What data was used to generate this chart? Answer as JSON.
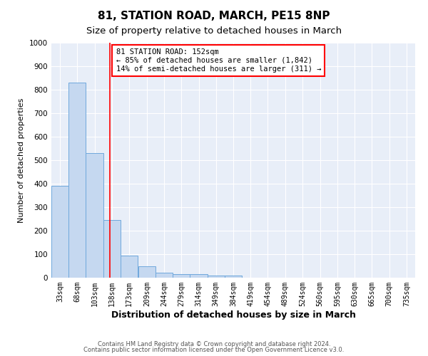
{
  "title": "81, STATION ROAD, MARCH, PE15 8NP",
  "subtitle": "Size of property relative to detached houses in March",
  "xlabel": "Distribution of detached houses by size in March",
  "ylabel": "Number of detached properties",
  "bin_edges": [
    33,
    68,
    103,
    138,
    173,
    209,
    244,
    279,
    314,
    349,
    384,
    419,
    454,
    489,
    524,
    560,
    595,
    630,
    665,
    700,
    735
  ],
  "bar_heights": [
    390,
    830,
    530,
    245,
    95,
    50,
    22,
    15,
    15,
    10,
    10,
    0,
    0,
    0,
    0,
    0,
    0,
    0,
    0,
    0
  ],
  "bar_color": "#c5d8f0",
  "bar_edge_color": "#6fa8dc",
  "red_line_x": 152,
  "ylim": [
    0,
    1000
  ],
  "annotation_text": "81 STATION ROAD: 152sqm\n← 85% of detached houses are smaller (1,842)\n14% of semi-detached houses are larger (311) →",
  "footer1": "Contains HM Land Registry data © Crown copyright and database right 2024.",
  "footer2": "Contains public sector information licensed under the Open Government Licence v3.0.",
  "title_fontsize": 11,
  "subtitle_fontsize": 9.5,
  "xlabel_fontsize": 9,
  "ylabel_fontsize": 8,
  "tick_fontsize": 7,
  "annotation_fontsize": 7.5,
  "footer_fontsize": 6,
  "background_color": "#ffffff",
  "plot_bg_color": "#e8eef8"
}
